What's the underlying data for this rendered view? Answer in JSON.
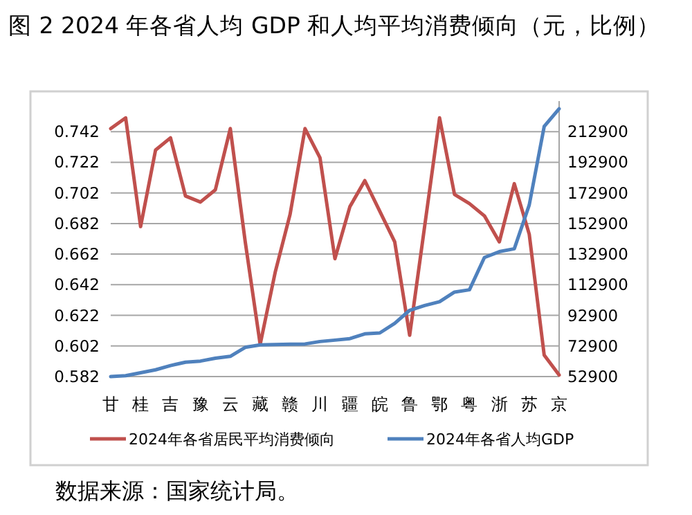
{
  "chart_data": {
    "type": "line",
    "title": "图 2 2024 年各省人均 GDP 和人均平均消费倾向（元，比例）",
    "annotations": [
      "数据来源：国家统计局。"
    ],
    "categories": [
      "甘",
      null,
      "桂",
      null,
      "吉",
      null,
      "豫",
      null,
      "云",
      null,
      "藏",
      null,
      "赣",
      null,
      "川",
      null,
      "疆",
      null,
      "皖",
      null,
      "鲁",
      null,
      "鄂",
      null,
      "粤",
      null,
      "浙",
      null,
      "苏",
      null,
      "京"
    ],
    "series": [
      {
        "name": "2024年各省居民平均消费倾向",
        "color": "#c0504d",
        "values": [
          0.744,
          0.751,
          0.68,
          0.73,
          0.738,
          0.7,
          0.696,
          0.704,
          0.744,
          0.67,
          0.603,
          0.65,
          0.688,
          0.744,
          0.725,
          0.659,
          0.693,
          0.71,
          0.69,
          0.67,
          0.609,
          0.68,
          0.751,
          0.701,
          0.695,
          0.687,
          0.67,
          0.708,
          0.675,
          0.596,
          0.583
        ]
      },
      {
        "name": "2024年各省人均GDP",
        "color": "#4f81bd",
        "axis": "y2",
        "values": [
          52900,
          53500,
          55400,
          57300,
          60100,
          62300,
          63000,
          64900,
          66100,
          72000,
          73600,
          73800,
          74000,
          74200,
          75800,
          76700,
          77700,
          80800,
          81400,
          87700,
          96200,
          99300,
          101800,
          108100,
          109600,
          130700,
          134500,
          136400,
          165000,
          216300,
          227900
        ]
      }
    ],
    "ylim": [
      0.582,
      0.762
    ],
    "yticks": [
      0.582,
      0.602,
      0.622,
      0.642,
      0.662,
      0.682,
      0.702,
      0.722,
      0.742
    ],
    "y2lim": [
      52900,
      232900
    ],
    "y2ticks": [
      52900,
      72900,
      92900,
      112900,
      132900,
      152900,
      172900,
      192900,
      212900
    ],
    "grid": "y",
    "legend": "bottom",
    "marker": "none",
    "line_style": "solid"
  }
}
